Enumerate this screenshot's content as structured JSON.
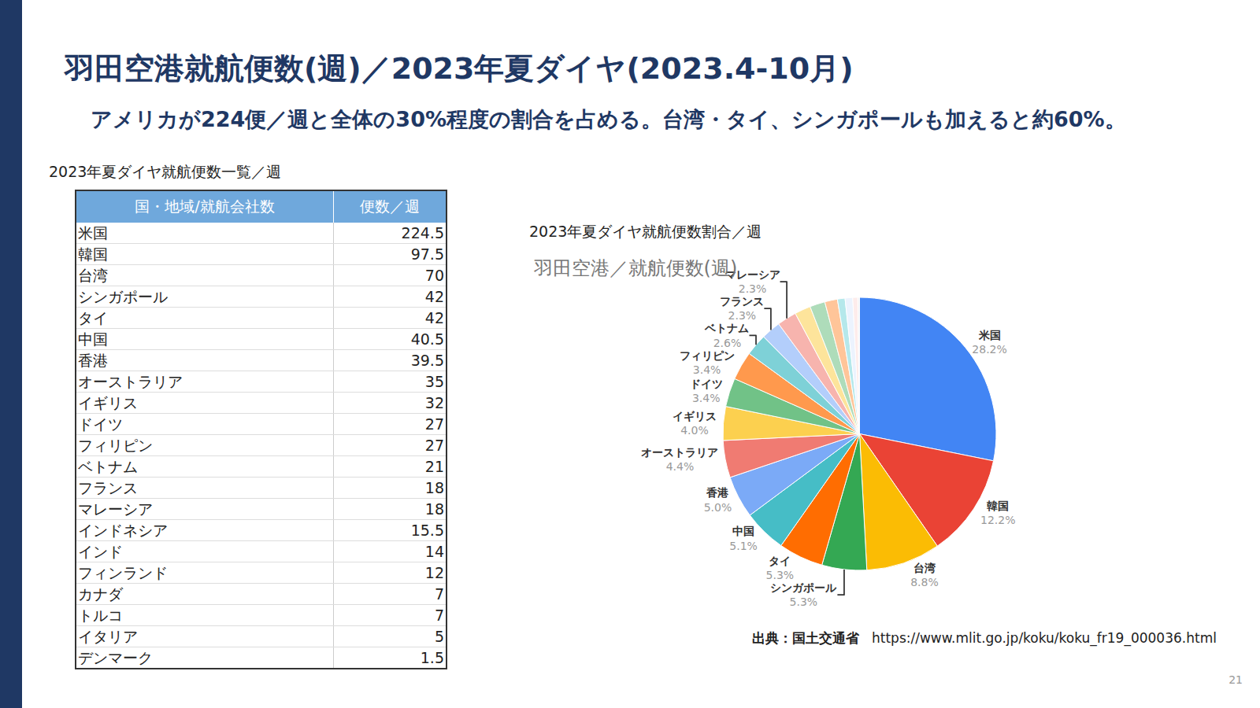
{
  "title": "羽田空港就航便数(週)／2023年夏ダイヤ(2023.4-10月)",
  "subtitle": "アメリカが224便／週と全体の30%程度の割合を占める。台湾・タイ、シンガポールも加えると約60%。",
  "table": {
    "caption": "2023年夏ダイヤ就航便数一覧／週",
    "header": [
      "国・地域/就航会社数",
      "便数／週"
    ],
    "rows": [
      [
        "米国",
        224.5
      ],
      [
        "韓国",
        97.5
      ],
      [
        "台湾",
        70
      ],
      [
        "シンガポール",
        42
      ],
      [
        "タイ",
        42
      ],
      [
        "中国",
        40.5
      ],
      [
        "香港",
        39.5
      ],
      [
        "オーストラリア",
        35
      ],
      [
        "イギリス",
        32
      ],
      [
        "ドイツ",
        27
      ],
      [
        "フィリピン",
        27
      ],
      [
        "ベトナム",
        21
      ],
      [
        "フランス",
        18
      ],
      [
        "マレーシア",
        18
      ],
      [
        "インドネシア",
        15.5
      ],
      [
        "インド",
        14
      ],
      [
        "フィンランド",
        12
      ],
      [
        "カナダ",
        7
      ],
      [
        "トルコ",
        7
      ],
      [
        "イタリア",
        5
      ],
      [
        "デンマーク",
        1.5
      ]
    ]
  },
  "chart_caption": "2023年夏ダイヤ就航便数割合／週",
  "chart_data": {
    "type": "pie",
    "title": "羽田空港／就航便数(週)",
    "categories": [
      "米国",
      "韓国",
      "台湾",
      "シンガポール",
      "タイ",
      "中国",
      "香港",
      "オーストラリア",
      "イギリス",
      "ドイツ",
      "フィリピン",
      "ベトナム",
      "フランス",
      "マレーシア",
      "インドネシア",
      "インド",
      "フィンランド",
      "カナダ",
      "トルコ",
      "イタリア",
      "デンマーク"
    ],
    "values": [
      28.2,
      12.2,
      8.8,
      5.3,
      5.3,
      5.1,
      5.0,
      4.4,
      4.0,
      3.4,
      3.4,
      2.6,
      2.3,
      2.3,
      1.9,
      1.8,
      1.5,
      0.9,
      0.9,
      0.6,
      0.2
    ],
    "value_labels": [
      "28.2%",
      "12.2%",
      "8.8%",
      "5.3%",
      "5.3%",
      "5.1%",
      "5.0%",
      "4.4%",
      "4.0%",
      "3.4%",
      "3.4%",
      "2.6%",
      "2.3%",
      "2.3%",
      null,
      null,
      null,
      null,
      null,
      null,
      null
    ],
    "colors": [
      "#4285f4",
      "#ea4335",
      "#fbbc04",
      "#34a853",
      "#ff6d01",
      "#46bdc6",
      "#7baaf7",
      "#f07b72",
      "#fcd04f",
      "#71c287",
      "#ff994d",
      "#7ed1d7",
      "#b3cefb",
      "#f7b4ae",
      "#fde49b",
      "#aedcba",
      "#ffc599",
      "#b5e8eb",
      "#ecf3fe",
      "#fdeceb",
      "#f2f2f2"
    ],
    "data_labels": true
  },
  "source": {
    "label": "出典：国土交通省",
    "url": "https://www.mlit.go.jp/koku/koku_fr19_000036.html"
  },
  "page_number": 21
}
